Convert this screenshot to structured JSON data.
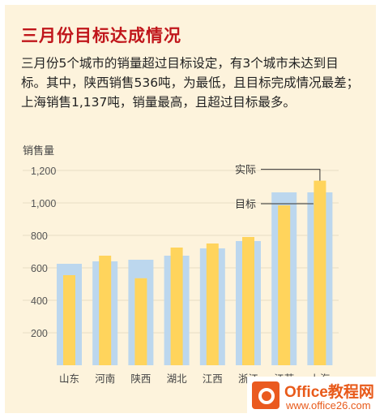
{
  "title": "三月份目标达成情况",
  "description": "三月份5个城市的销量超过目标设定，有3个城市未达到目标。其中，陕西销售536吨，为最低，且目标完成情况最差；上海销售1,137吨，销量最高，且超过目标最多。",
  "colors": {
    "target": "#bcd7ee",
    "actual": "#ffd45c",
    "title": "#c0161b",
    "background": "#fdf3dc"
  },
  "chart_data": {
    "type": "bar",
    "ylabel": "销售量",
    "categories": [
      "山东",
      "河南",
      "陕西",
      "湖北",
      "江西",
      "浙江",
      "江苏",
      "上海"
    ],
    "series": [
      {
        "name": "目标",
        "values": [
          625,
          640,
          650,
          675,
          720,
          765,
          1065,
          1065
        ]
      },
      {
        "name": "实际",
        "values": [
          555,
          675,
          536,
          725,
          750,
          790,
          985,
          1137
        ]
      }
    ],
    "yticks": [
      200,
      400,
      600,
      800,
      1000,
      1200
    ],
    "ytick_labels": [
      "200",
      "400",
      "600",
      "800",
      "1,000",
      "1,200"
    ],
    "ylim": [
      0,
      1300
    ],
    "annotations": [
      "实际",
      "目标"
    ]
  },
  "watermark": {
    "line1": "Office教程网",
    "line2": "www.office26.com"
  }
}
